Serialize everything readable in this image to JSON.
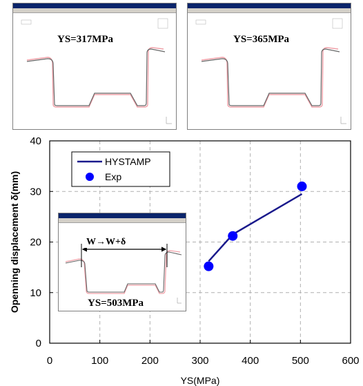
{
  "panels": [
    {
      "label": "YS=317MPa"
    },
    {
      "label": "YS=365MPa"
    }
  ],
  "inset": {
    "label": "YS=503MPa",
    "annotation": "W→W+δ"
  },
  "chart_data": {
    "type": "line",
    "xlabel": "YS(MPa)",
    "ylabel": "Openning displacement δ(mm)",
    "xlim": [
      0,
      600
    ],
    "ylim": [
      0,
      40
    ],
    "xticks": [
      0,
      100,
      200,
      300,
      400,
      500,
      600
    ],
    "yticks": [
      0,
      10,
      20,
      30,
      40
    ],
    "grid": true,
    "legend_position": "top-left",
    "series": [
      {
        "name": "HYSTAMP",
        "kind": "line",
        "color": "#1a1a8c",
        "x": [
          317,
          365,
          503
        ],
        "y": [
          16.2,
          21.5,
          29.5
        ]
      },
      {
        "name": "Exp",
        "kind": "scatter",
        "color": "#0000ff",
        "x": [
          317,
          365,
          503
        ],
        "y": [
          15.2,
          21.2,
          31.0
        ]
      }
    ]
  }
}
